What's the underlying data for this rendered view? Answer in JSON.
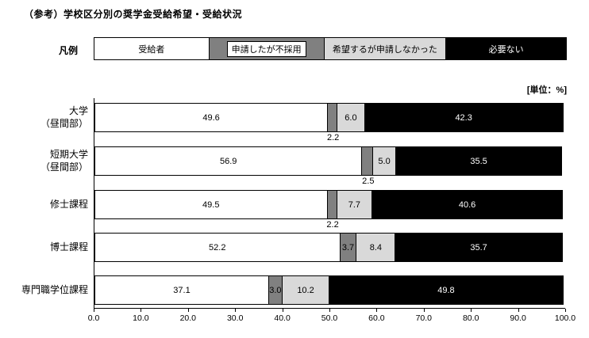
{
  "title": "（参考）学校区分別の奨学金受給希望・受給状況",
  "legend": {
    "caption": "凡例"
  },
  "unit_label": "[単位：%]",
  "chart_data": {
    "type": "bar",
    "stacked": true,
    "orientation": "horizontal",
    "unit": "%",
    "xlim": [
      0,
      100
    ],
    "x_ticks": [
      "0.0",
      "10.0",
      "20.0",
      "30.0",
      "40.0",
      "50.0",
      "60.0",
      "70.0",
      "80.0",
      "90.0",
      "100.0"
    ],
    "categories": [
      "大学\n（昼間部）",
      "短期大学\n（昼間部）",
      "修士課程",
      "博士課程",
      "専門職学位課程"
    ],
    "series": [
      {
        "name": "受給者",
        "color": "#ffffff",
        "values": [
          49.6,
          56.9,
          49.5,
          52.2,
          37.1
        ]
      },
      {
        "name": "申請したが不採用",
        "color": "#808080",
        "values": [
          2.2,
          2.5,
          2.2,
          3.7,
          3.0
        ]
      },
      {
        "name": "希望するが申請しなかった",
        "color": "#d9d9d9",
        "values": [
          6.0,
          5.0,
          7.7,
          8.4,
          10.2
        ]
      },
      {
        "name": "必要ない",
        "color": "#000000",
        "values": [
          42.3,
          35.5,
          40.6,
          35.7,
          49.8
        ]
      }
    ],
    "below_bar_label_series_by_row": [
      [
        1
      ],
      [
        1
      ],
      [
        1
      ],
      [],
      []
    ],
    "legend_position": "top"
  }
}
